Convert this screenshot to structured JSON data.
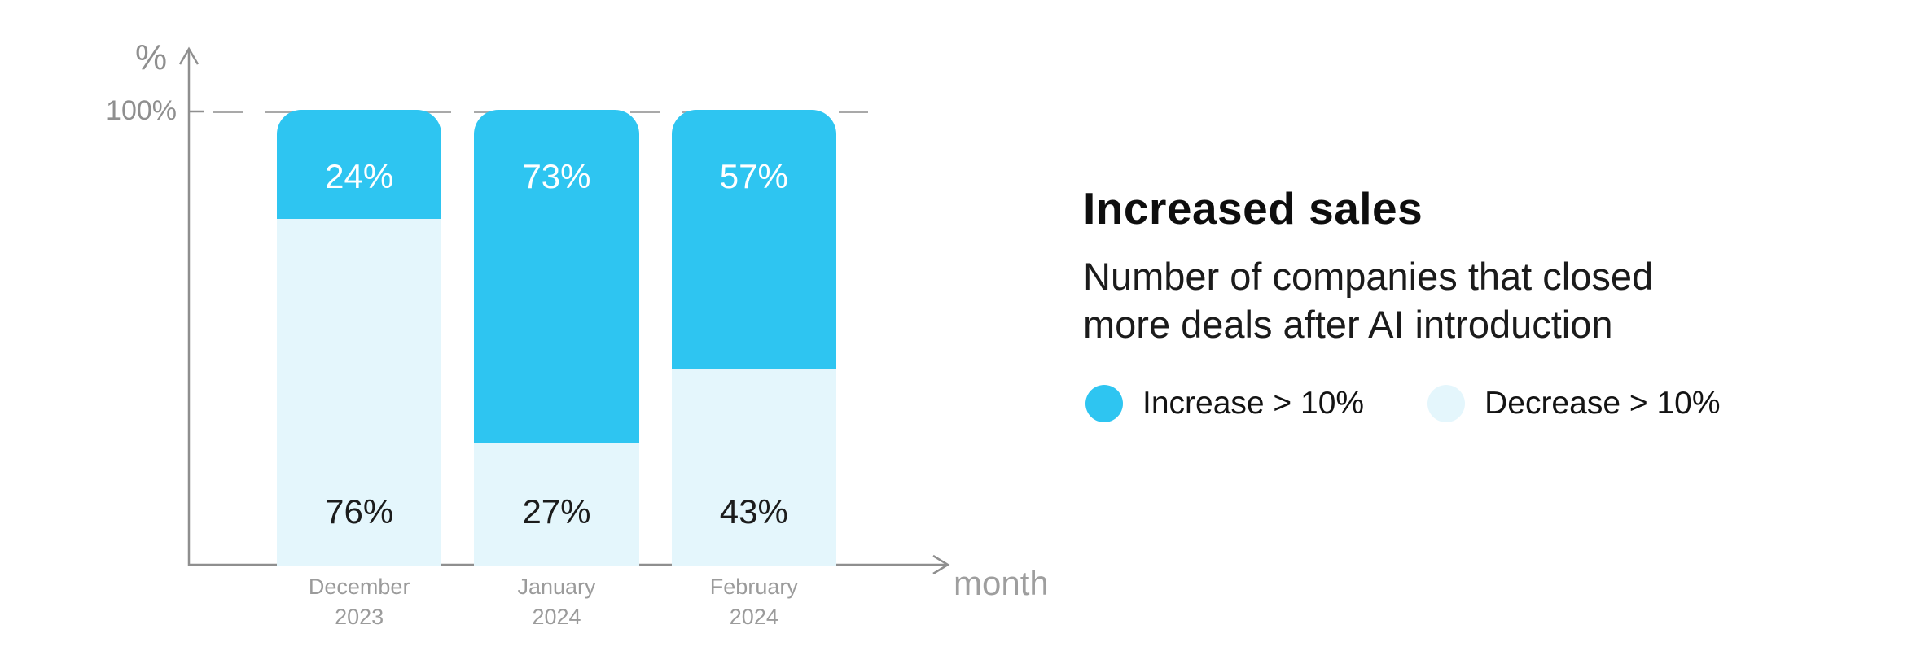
{
  "panel": {
    "title": "Increased sales",
    "subtitle_lines": [
      "Number of companies that closed",
      "more deals after AI introduction"
    ]
  },
  "chart": {
    "y_axis_unit": "%",
    "y_tick_label": "100%",
    "x_axis_label": "month"
  },
  "colors": {
    "increase": "#2EC5F1",
    "decrease": "#E4F6FC",
    "axis_gray": "#8f8f8f",
    "label_gray": "#9b9b9b"
  },
  "chart_data": {
    "type": "bar",
    "stacked": true,
    "unit": "percent",
    "title": "Increased sales",
    "subtitle": "Number of companies that closed more deals after AI introduction",
    "categories": [
      "December 2023",
      "January 2024",
      "February 2024"
    ],
    "series": [
      {
        "name": "Increase > 10%",
        "color": "#2EC5F1",
        "values": [
          24,
          73,
          57
        ]
      },
      {
        "name": "Decrease > 10%",
        "color": "#E4F6FC",
        "values": [
          76,
          27,
          43
        ]
      }
    ],
    "xlabel": "month",
    "ylabel": "%",
    "ylim": [
      0,
      100
    ],
    "gridlines": "dashed line at 100%",
    "legend_position": "right-panel"
  }
}
